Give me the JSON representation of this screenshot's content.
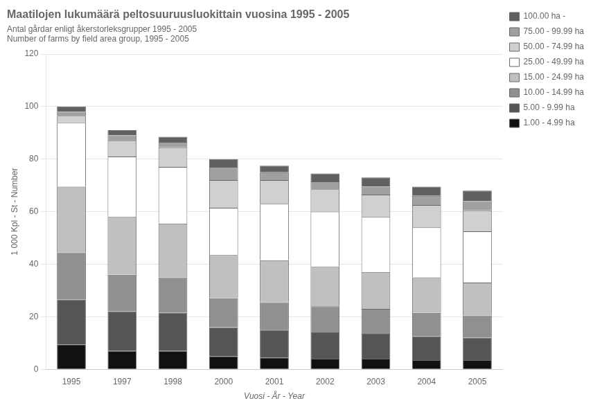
{
  "chart_data": {
    "type": "bar",
    "stacked": true,
    "title": "Maatilojen lukumäärä peltosuuruusluokittain vuosina 1995 - 2005",
    "subtitle": [
      "Antal gårdar enligt åkerstorleksgrupper 1995 - 2005",
      "Number of farms by field area group, 1995 - 2005"
    ],
    "ylabel": "1 000 Kpl - St - Number",
    "xlabel": "Vuosi - År - Year",
    "categories": [
      "1995",
      "1997",
      "1998",
      "2000",
      "2001",
      "2002",
      "2003",
      "2004",
      "2005"
    ],
    "series": [
      {
        "name": "1.00 - 4.99 ha",
        "color": "#111111",
        "values": [
          9.5,
          7.0,
          7.0,
          5.0,
          4.5,
          4.0,
          4.0,
          3.5,
          3.5
        ]
      },
      {
        "name": "5.00 - 9.99 ha",
        "color": "#555555",
        "values": [
          17.0,
          15.0,
          14.5,
          11.0,
          10.5,
          10.0,
          9.5,
          9.0,
          8.5
        ]
      },
      {
        "name": "10.00 - 14.99 ha",
        "color": "#909090",
        "values": [
          18.0,
          14.0,
          13.5,
          11.0,
          10.5,
          10.0,
          9.5,
          9.0,
          8.5
        ]
      },
      {
        "name": "15.00 - 24.99 ha",
        "color": "#c0c0c0",
        "values": [
          25.0,
          22.0,
          20.5,
          16.5,
          16.0,
          15.0,
          14.0,
          13.5,
          12.5
        ]
      },
      {
        "name": "25.00 - 49.99 ha",
        "color": "#ffffff",
        "values": [
          24.5,
          23.0,
          21.5,
          18.0,
          21.5,
          21.0,
          21.0,
          19.0,
          19.5
        ]
      },
      {
        "name": "50.00 - 74.99 ha",
        "color": "#d0d0d0",
        "values": [
          2.5,
          6.0,
          7.5,
          10.5,
          9.0,
          8.5,
          8.5,
          8.5,
          8.0
        ]
      },
      {
        "name": "75.00 - 99.99 ha",
        "color": "#a0a0a0",
        "values": [
          1.5,
          2.0,
          2.0,
          5.0,
          3.0,
          3.0,
          3.0,
          3.5,
          3.5
        ]
      },
      {
        "name": "100.00 ha -",
        "color": "#606060",
        "values": [
          2.0,
          2.0,
          2.0,
          3.0,
          2.5,
          3.0,
          3.5,
          3.5,
          4.0
        ]
      }
    ],
    "ylim": [
      0,
      120
    ],
    "yticks": [
      0,
      20,
      40,
      60,
      80,
      100,
      120
    ],
    "grid": true,
    "legend": "right"
  }
}
